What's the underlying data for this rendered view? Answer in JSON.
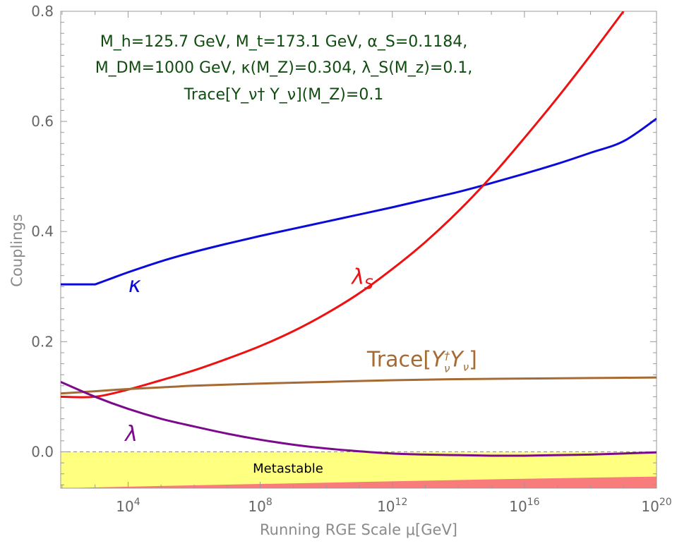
{
  "chart_data": {
    "type": "line",
    "xlabel": "Running RGE Scale μ[GeV]",
    "ylabel": "Couplings",
    "x_scale": "log10",
    "xlim_log10": [
      1.96,
      20
    ],
    "ylim": [
      -0.066,
      0.8
    ],
    "x_ticks": [
      {
        "exp": 4,
        "base": "10",
        "sup": "4"
      },
      {
        "exp": 8,
        "base": "10",
        "sup": "8"
      },
      {
        "exp": 12,
        "base": "10",
        "sup": "12"
      },
      {
        "exp": 16,
        "base": "10",
        "sup": "16"
      },
      {
        "exp": 20,
        "base": "10",
        "sup": "20"
      }
    ],
    "y_ticks": [
      {
        "value": 0.0,
        "label": "0.0"
      },
      {
        "value": 0.2,
        "label": "0.2"
      },
      {
        "value": 0.4,
        "label": "0.4"
      },
      {
        "value": 0.6,
        "label": "0.6"
      },
      {
        "value": 0.8,
        "label": "0.8"
      }
    ],
    "parameters_text": [
      "M_h=125.7 GeV, M_t=173.1 GeV, α_S=0.1184,",
      "M_DM=1000 GeV, κ(M_Z)=0.304, λ_S(M_z)=0.1,",
      "Trace[Y_ν† Y_ν](M_Z)=0.1"
    ],
    "series": [
      {
        "name": "κ",
        "color": "#0b0bd9",
        "label": "κ",
        "label_at": [
          4.2,
          0.29
        ],
        "x_log10": [
          1.96,
          3.0,
          3.5,
          4.0,
          5.0,
          6.0,
          7.0,
          8.0,
          9.0,
          10.0,
          11.0,
          12.0,
          13.0,
          14.0,
          15.0,
          16.0,
          17.0,
          18.0,
          19.0,
          20.0
        ],
        "values": [
          0.304,
          0.304,
          0.315,
          0.326,
          0.346,
          0.363,
          0.378,
          0.392,
          0.405,
          0.418,
          0.431,
          0.444,
          0.458,
          0.472,
          0.488,
          0.505,
          0.523,
          0.543,
          0.564,
          0.605
        ]
      },
      {
        "name": "λ_S",
        "color": "#ee1111",
        "label": "λS",
        "label_at": [
          11.1,
          0.305
        ],
        "x_log10": [
          1.96,
          3.0,
          4.0,
          5.0,
          6.0,
          7.0,
          8.0,
          9.0,
          10.0,
          11.0,
          12.0,
          13.0,
          14.0,
          15.0,
          16.0,
          17.0,
          18.0,
          19.0
        ],
        "values": [
          0.1,
          0.1,
          0.113,
          0.13,
          0.148,
          0.169,
          0.192,
          0.219,
          0.251,
          0.288,
          0.332,
          0.381,
          0.437,
          0.5,
          0.57,
          0.643,
          0.72,
          0.8
        ]
      },
      {
        "name": "Trace[Y_ν† Y_ν]",
        "color": "#a66b35",
        "label": "Trace",
        "label_bracket_open": "[",
        "label_Y": "Y",
        "label_nu": "ν",
        "label_dagger": "†",
        "label_bracket_close": "]",
        "label_at": [
          12.9,
          0.155
        ],
        "x_log10": [
          1.96,
          3.0,
          4.0,
          5.0,
          6.0,
          8.0,
          10.0,
          12.0,
          14.0,
          16.0,
          18.0,
          20.0
        ],
        "values": [
          0.106,
          0.11,
          0.114,
          0.117,
          0.12,
          0.124,
          0.127,
          0.13,
          0.132,
          0.133,
          0.134,
          0.135
        ]
      },
      {
        "name": "λ",
        "color": "#7b0a8c",
        "label": "λ",
        "label_at": [
          4.1,
          0.02
        ],
        "x_log10": [
          1.96,
          3.0,
          4.0,
          5.0,
          6.0,
          7.0,
          8.0,
          9.0,
          10.0,
          11.0,
          12.0,
          13.0,
          14.0,
          15.0,
          16.0,
          17.0,
          18.0,
          19.0,
          20.0
        ],
        "values": [
          0.127,
          0.1,
          0.078,
          0.06,
          0.046,
          0.033,
          0.022,
          0.013,
          0.006,
          0.001,
          -0.003,
          -0.005,
          -0.006,
          -0.007,
          -0.007,
          -0.006,
          -0.005,
          -0.003,
          -0.001
        ]
      }
    ],
    "regions": {
      "metastable": {
        "label": "Metastable",
        "color": "#ffff80",
        "top_value": 0.0
      },
      "unstable": {
        "color": "#f87c7c",
        "boundary_x_log10": [
          1.96,
          5,
          10,
          15,
          20
        ],
        "boundary_values": [
          -0.066,
          -0.062,
          -0.056,
          -0.05,
          -0.045
        ]
      }
    },
    "grid": false,
    "legend": "none (curves labeled inline)"
  }
}
